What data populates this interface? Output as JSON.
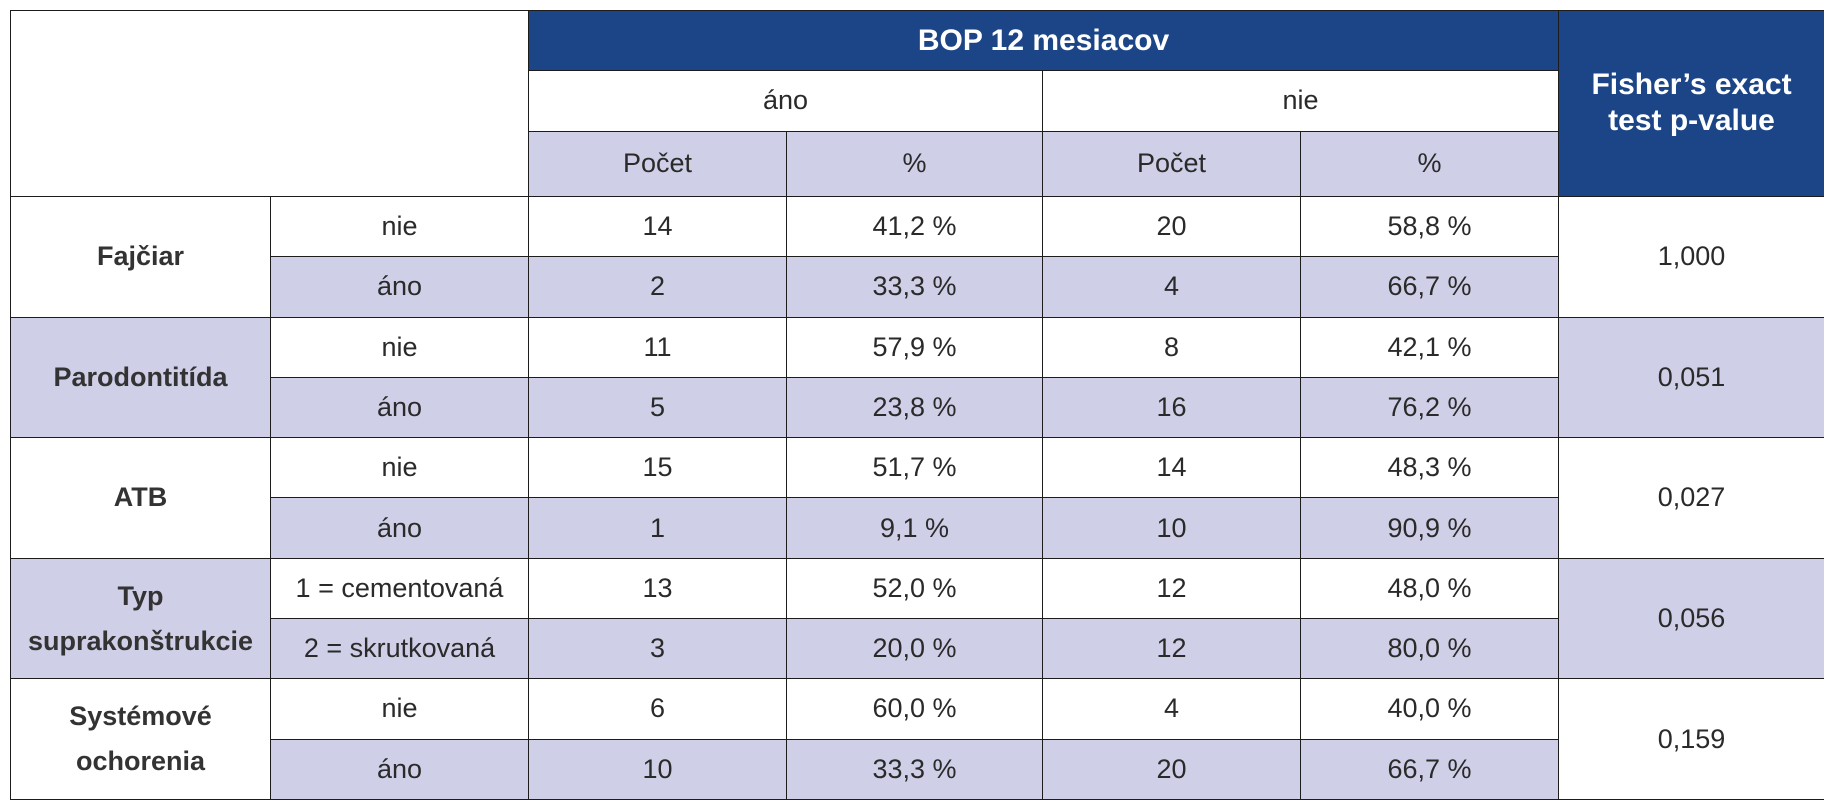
{
  "header": {
    "group_title": "BOP 12 mesiacov",
    "col_yes": "áno",
    "col_no": "nie",
    "count": "Počet",
    "percent": "%",
    "p_value_line1": "Fisher’s exact",
    "p_value_line2": "test p-value"
  },
  "groups": [
    {
      "label_line1": "Fajčiar",
      "label_line2": "",
      "p_value": "1,000",
      "rows": [
        {
          "level": "nie",
          "yes_count": "14",
          "yes_pct": "41,2 %",
          "no_count": "20",
          "no_pct": "58,8 %"
        },
        {
          "level": "áno",
          "yes_count": "2",
          "yes_pct": "33,3 %",
          "no_count": "4",
          "no_pct": "66,7 %"
        }
      ]
    },
    {
      "label_line1": "Parodontitída",
      "label_line2": "",
      "p_value": "0,051",
      "rows": [
        {
          "level": "nie",
          "yes_count": "11",
          "yes_pct": "57,9 %",
          "no_count": "8",
          "no_pct": "42,1 %"
        },
        {
          "level": "áno",
          "yes_count": "5",
          "yes_pct": "23,8 %",
          "no_count": "16",
          "no_pct": "76,2 %"
        }
      ]
    },
    {
      "label_line1": "ATB",
      "label_line2": "",
      "p_value": "0,027",
      "rows": [
        {
          "level": "nie",
          "yes_count": "15",
          "yes_pct": "51,7 %",
          "no_count": "14",
          "no_pct": "48,3 %"
        },
        {
          "level": "áno",
          "yes_count": "1",
          "yes_pct": "9,1 %",
          "no_count": "10",
          "no_pct": "90,9 %"
        }
      ]
    },
    {
      "label_line1": "Typ",
      "label_line2": "suprakonštrukcie",
      "p_value": "0,056",
      "rows": [
        {
          "level": "1 = cementovaná",
          "yes_count": "13",
          "yes_pct": "52,0 %",
          "no_count": "12",
          "no_pct": "48,0 %"
        },
        {
          "level": "2 = skrutkovaná",
          "yes_count": "3",
          "yes_pct": "20,0 %",
          "no_count": "12",
          "no_pct": "80,0 %"
        }
      ]
    },
    {
      "label_line1": "Systémové",
      "label_line2": "ochorenia",
      "p_value": "0,159",
      "rows": [
        {
          "level": "nie",
          "yes_count": "6",
          "yes_pct": "60,0 %",
          "no_count": "4",
          "no_pct": "40,0 %"
        },
        {
          "level": "áno",
          "yes_count": "10",
          "yes_pct": "33,3 %",
          "no_count": "20",
          "no_pct": "66,7 %"
        }
      ]
    }
  ]
}
